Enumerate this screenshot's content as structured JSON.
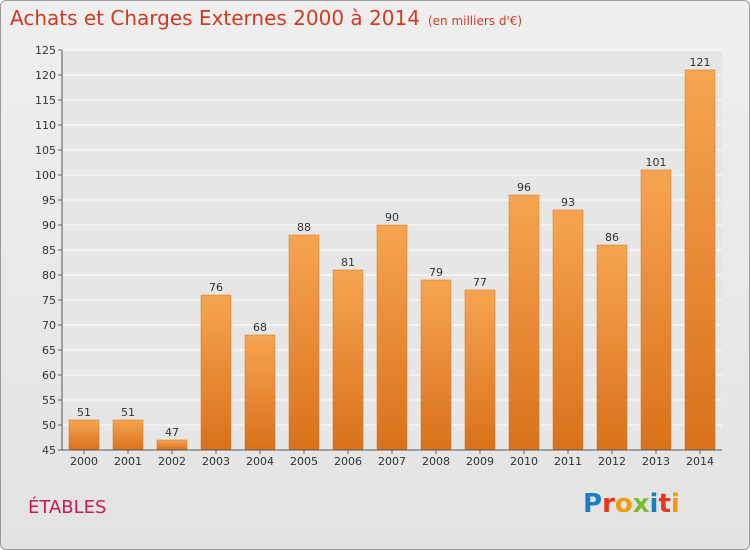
{
  "title": "Achats et Charges Externes 2000 à 2014",
  "subtitle": "(en milliers d'€)",
  "commune": "ÉTABLES",
  "logo": {
    "letters": [
      "P",
      "r",
      "o",
      "x",
      "i",
      "t",
      "i"
    ],
    "colors": [
      "#1a7fc1",
      "#e8361c",
      "#f29a0d",
      "#7cba2f",
      "#1a7fc1",
      "#e8361c",
      "#f29a0d"
    ]
  },
  "colors": {
    "bar": "#f0892d",
    "barLight": "#f6a552",
    "title": "#d23a1f",
    "commune": "#c8195a"
  },
  "chart_data": {
    "type": "bar",
    "categories": [
      "2000",
      "2001",
      "2002",
      "2003",
      "2004",
      "2005",
      "2006",
      "2007",
      "2008",
      "2009",
      "2010",
      "2011",
      "2012",
      "2013",
      "2014"
    ],
    "values": [
      51,
      51,
      47,
      76,
      68,
      88,
      81,
      90,
      79,
      77,
      96,
      93,
      86,
      101,
      121
    ],
    "ylim": [
      45,
      125
    ],
    "yticks": [
      45,
      50,
      55,
      60,
      65,
      70,
      75,
      80,
      85,
      90,
      95,
      100,
      105,
      110,
      115,
      120,
      125
    ],
    "grid": true
  }
}
